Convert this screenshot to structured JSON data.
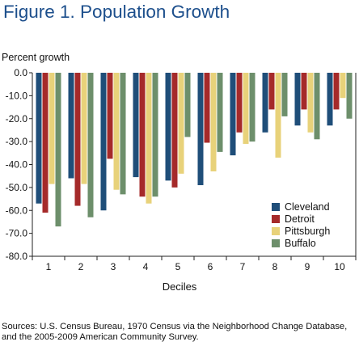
{
  "chart_data": {
    "type": "bar",
    "title": "Figure 1. Population Growth",
    "ylabel": "Percent growth",
    "xlabel": "Deciles",
    "categories": [
      "1",
      "2",
      "3",
      "4",
      "5",
      "6",
      "7",
      "8",
      "9",
      "10"
    ],
    "y_ticks": [
      "0.0",
      "-10.0",
      "-20.0",
      "-30.0",
      "-40.0",
      "-50.0",
      "-60.0",
      "-70.0",
      "-80.0"
    ],
    "ylim": [
      -80,
      0
    ],
    "grid": false,
    "legend_position": "bottom-right",
    "series": [
      {
        "name": "Cleveland",
        "color": "#1f4e79",
        "values": [
          -57,
          -46,
          -60,
          -45.5,
          -47,
          -49,
          -36,
          -26,
          -23,
          -23
        ]
      },
      {
        "name": "Detroit",
        "color": "#a52a2a",
        "values": [
          -61,
          -58,
          -37.5,
          -54,
          -50,
          -30.5,
          -26,
          -16,
          -16,
          -16
        ]
      },
      {
        "name": "Pittsburgh",
        "color": "#e8d27a",
        "values": [
          -48.5,
          -48.5,
          -51,
          -57,
          -44,
          -43,
          -31,
          -37,
          -26,
          -11
        ]
      },
      {
        "name": "Buffalo",
        "color": "#6d8f6b",
        "values": [
          -67,
          -63,
          -53,
          -54,
          -28,
          -34.5,
          -30,
          -19,
          -29,
          -20
        ]
      }
    ]
  },
  "source_text": "Sources: U.S. Census Bureau, 1970 Census via the Neighborhood Change Database, and the 2005-2009 American Community Survey."
}
